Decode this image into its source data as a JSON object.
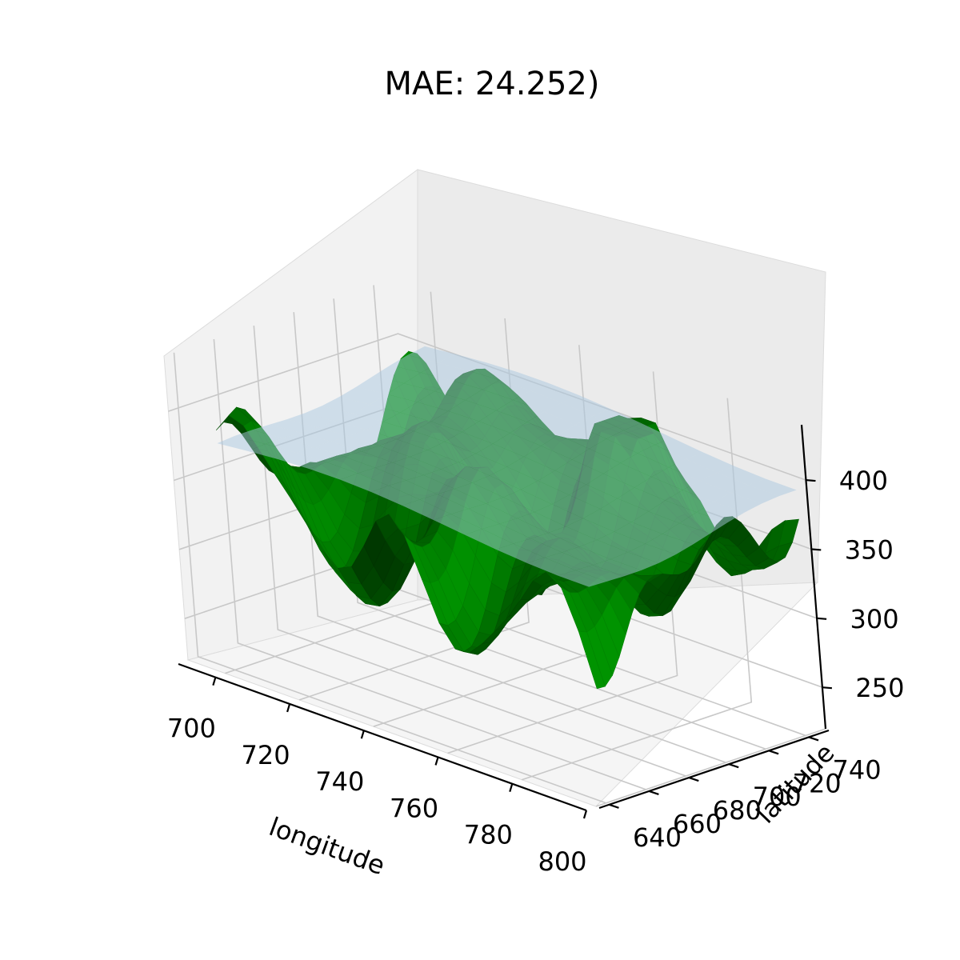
{
  "chart_data": {
    "type": "surface3d",
    "title": "MAE: 24.252)",
    "xlabel": "longitude",
    "ylabel": "latitude",
    "zlabel": "",
    "xlim": [
      690,
      800
    ],
    "ylim": [
      635,
      750
    ],
    "zlim": [
      220,
      440
    ],
    "x_ticks": [
      700,
      720,
      740,
      760,
      780,
      800
    ],
    "y_ticks": [
      640,
      660,
      680,
      700,
      720,
      740
    ],
    "z_ticks": [
      250,
      300,
      350,
      400
    ],
    "x_tick_labels": [
      "700",
      "720",
      "740",
      "760",
      "780",
      "800"
    ],
    "y_tick_labels": [
      "640",
      "660",
      "680",
      "700",
      "720",
      "740"
    ],
    "z_tick_labels": [
      "250",
      "300",
      "350",
      "400"
    ],
    "grid": true,
    "series": [
      {
        "kind": "observed terrain surface",
        "color": "#008000",
        "z_range": [
          225,
          420
        ]
      },
      {
        "kind": "predicted smooth surface",
        "color": "#a9c8e0",
        "alpha": 0.5,
        "z_range": [
          370,
          410
        ]
      }
    ]
  }
}
